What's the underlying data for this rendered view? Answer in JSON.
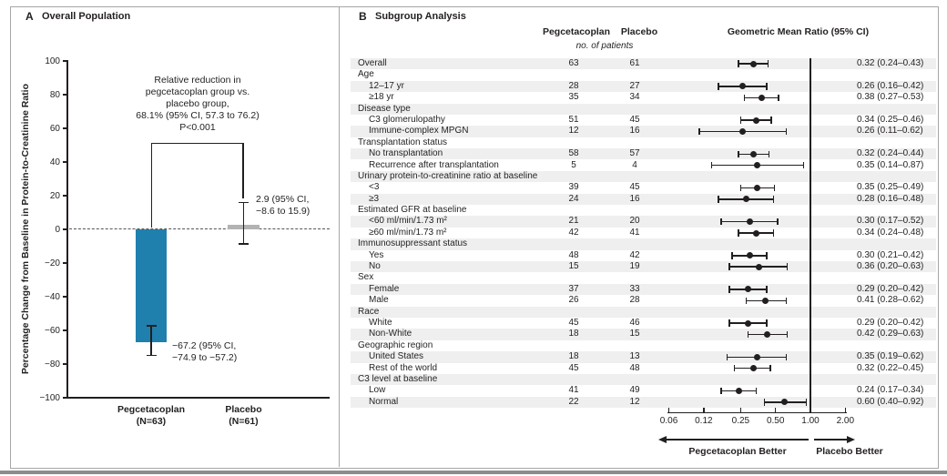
{
  "colors": {
    "ink": "#231f20",
    "pegcetacoplan_bar": "#1f80ad",
    "placebo_bar": "#b3b3b3",
    "row_stripe": "#efefef",
    "frame_gray": "#a6a6a6",
    "bottom_rule_gray": "#8c8c8c"
  },
  "chart_data": [
    {
      "type": "bar",
      "panel_letter": "A",
      "title": "Overall Population",
      "ylabel": "Percentage Change from Baseline in Protein-to-Creatinine Ratio",
      "ylim": [
        -100,
        100
      ],
      "y_ticks": [
        100,
        80,
        60,
        40,
        20,
        0,
        -20,
        -40,
        -60,
        -80,
        -100
      ],
      "zero_line_style": "dashed",
      "comparison_note": "Relative reduction in\npegcetacoplan group vs.\nplacebo group,\n68.1% (95% CI, 57.3 to 76.2)\nP<0.001",
      "bars": [
        {
          "category": "Pegcetacoplan",
          "n_label": "(N=63)",
          "value": -67.2,
          "ci": [
            -74.9,
            -57.2
          ],
          "color": "#1f80ad",
          "label": "−67.2 (95% CI,\n−74.9 to −57.2)"
        },
        {
          "category": "Placebo",
          "n_label": "(N=61)",
          "value": 2.9,
          "ci": [
            -8.6,
            15.9
          ],
          "color": "#b3b3b3",
          "label": "2.9 (95% CI,\n−8.6 to 15.9)"
        }
      ]
    },
    {
      "type": "scatter",
      "variant": "forest-plot",
      "panel_letter": "B",
      "title": "Subgroup Analysis",
      "columns": {
        "pegcetacoplan": "Pegcetacoplan",
        "placebo": "Placebo",
        "unit_note": "no. of patients",
        "ratio": "Geometric Mean Ratio (95% CI)"
      },
      "xscale": "log",
      "xlim": [
        0.06,
        2.0
      ],
      "x_ticks": [
        {
          "label": "0.06",
          "value": 0.06
        },
        {
          "label": "0.12",
          "value": 0.12
        },
        {
          "label": "0.25",
          "value": 0.25
        },
        {
          "label": "0.50",
          "value": 0.5
        },
        {
          "label": "1.00",
          "value": 1.0
        },
        {
          "label": "2.00",
          "value": 2.0
        }
      ],
      "reference_value": 1.0,
      "direction_labels": {
        "left": "Pegcetacoplan Better",
        "right": "Placebo Better"
      },
      "rows": [
        {
          "label": "Overall",
          "indent": 0,
          "peg": "63",
          "placebo": "61",
          "est": 0.32,
          "lo": 0.24,
          "hi": 0.43,
          "ratio_text": "0.32 (0.24–0.43)"
        },
        {
          "label": "Age",
          "indent": 0,
          "group": true
        },
        {
          "label": "12–17 yr",
          "indent": 1,
          "peg": "28",
          "placebo": "27",
          "est": 0.26,
          "lo": 0.16,
          "hi": 0.42,
          "ratio_text": "0.26 (0.16–0.42)"
        },
        {
          "label": "≥18 yr",
          "indent": 1,
          "peg": "35",
          "placebo": "34",
          "est": 0.38,
          "lo": 0.27,
          "hi": 0.53,
          "ratio_text": "0.38 (0.27–0.53)"
        },
        {
          "label": "Disease type",
          "indent": 0,
          "group": true
        },
        {
          "label": "C3 glomerulopathy",
          "indent": 1,
          "peg": "51",
          "placebo": "45",
          "est": 0.34,
          "lo": 0.25,
          "hi": 0.46,
          "ratio_text": "0.34 (0.25–0.46)"
        },
        {
          "label": "Immune-complex MPGN",
          "indent": 1,
          "peg": "12",
          "placebo": "16",
          "est": 0.26,
          "lo": 0.11,
          "hi": 0.62,
          "ratio_text": "0.26 (0.11–0.62)"
        },
        {
          "label": "Transplantation status",
          "indent": 0,
          "group": true
        },
        {
          "label": "No transplantation",
          "indent": 1,
          "peg": "58",
          "placebo": "57",
          "est": 0.32,
          "lo": 0.24,
          "hi": 0.44,
          "ratio_text": "0.32 (0.24–0.44)"
        },
        {
          "label": "Recurrence after transplantation",
          "indent": 1,
          "peg": "5",
          "placebo": "4",
          "est": 0.35,
          "lo": 0.14,
          "hi": 0.87,
          "ratio_text": "0.35 (0.14–0.87)"
        },
        {
          "label": "Urinary protein-to-creatinine ratio at baseline",
          "indent": 0,
          "group": true
        },
        {
          "label": "<3",
          "indent": 1,
          "peg": "39",
          "placebo": "45",
          "est": 0.35,
          "lo": 0.25,
          "hi": 0.49,
          "ratio_text": "0.35 (0.25–0.49)"
        },
        {
          "label": "≥3",
          "indent": 1,
          "peg": "24",
          "placebo": "16",
          "est": 0.28,
          "lo": 0.16,
          "hi": 0.48,
          "ratio_text": "0.28 (0.16–0.48)"
        },
        {
          "label": "Estimated GFR at baseline",
          "indent": 0,
          "group": true
        },
        {
          "label": "<60 ml/min/1.73 m²",
          "indent": 1,
          "peg": "21",
          "placebo": "20",
          "est": 0.3,
          "lo": 0.17,
          "hi": 0.52,
          "ratio_text": "0.30 (0.17–0.52)"
        },
        {
          "label": "≥60 ml/min/1.73 m²",
          "indent": 1,
          "peg": "42",
          "placebo": "41",
          "est": 0.34,
          "lo": 0.24,
          "hi": 0.48,
          "ratio_text": "0.34 (0.24–0.48)"
        },
        {
          "label": "Immunosuppressant status",
          "indent": 0,
          "group": true
        },
        {
          "label": "Yes",
          "indent": 1,
          "peg": "48",
          "placebo": "42",
          "est": 0.3,
          "lo": 0.21,
          "hi": 0.42,
          "ratio_text": "0.30 (0.21–0.42)"
        },
        {
          "label": "No",
          "indent": 1,
          "peg": "15",
          "placebo": "19",
          "est": 0.36,
          "lo": 0.2,
          "hi": 0.63,
          "ratio_text": "0.36 (0.20–0.63)"
        },
        {
          "label": "Sex",
          "indent": 0,
          "group": true
        },
        {
          "label": "Female",
          "indent": 1,
          "peg": "37",
          "placebo": "33",
          "est": 0.29,
          "lo": 0.2,
          "hi": 0.42,
          "ratio_text": "0.29 (0.20–0.42)"
        },
        {
          "label": "Male",
          "indent": 1,
          "peg": "26",
          "placebo": "28",
          "est": 0.41,
          "lo": 0.28,
          "hi": 0.62,
          "ratio_text": "0.41 (0.28–0.62)"
        },
        {
          "label": "Race",
          "indent": 0,
          "group": true
        },
        {
          "label": "White",
          "indent": 1,
          "peg": "45",
          "placebo": "46",
          "est": 0.29,
          "lo": 0.2,
          "hi": 0.42,
          "ratio_text": "0.29 (0.20–0.42)"
        },
        {
          "label": "Non-White",
          "indent": 1,
          "peg": "18",
          "placebo": "15",
          "est": 0.42,
          "lo": 0.29,
          "hi": 0.63,
          "ratio_text": "0.42 (0.29–0.63)"
        },
        {
          "label": "Geographic region",
          "indent": 0,
          "group": true
        },
        {
          "label": "United States",
          "indent": 1,
          "peg": "18",
          "placebo": "13",
          "est": 0.35,
          "lo": 0.19,
          "hi": 0.62,
          "ratio_text": "0.35 (0.19–0.62)"
        },
        {
          "label": "Rest of the world",
          "indent": 1,
          "peg": "45",
          "placebo": "48",
          "est": 0.32,
          "lo": 0.22,
          "hi": 0.45,
          "ratio_text": "0.32 (0.22–0.45)"
        },
        {
          "label": "C3 level at baseline",
          "indent": 0,
          "group": true
        },
        {
          "label": "Low",
          "indent": 1,
          "peg": "41",
          "placebo": "49",
          "est": 0.24,
          "lo": 0.17,
          "hi": 0.34,
          "ratio_text": "0.24 (0.17–0.34)"
        },
        {
          "label": "Normal",
          "indent": 1,
          "peg": "22",
          "placebo": "12",
          "est": 0.6,
          "lo": 0.4,
          "hi": 0.92,
          "ratio_text": "0.60 (0.40–0.92)"
        }
      ]
    }
  ]
}
